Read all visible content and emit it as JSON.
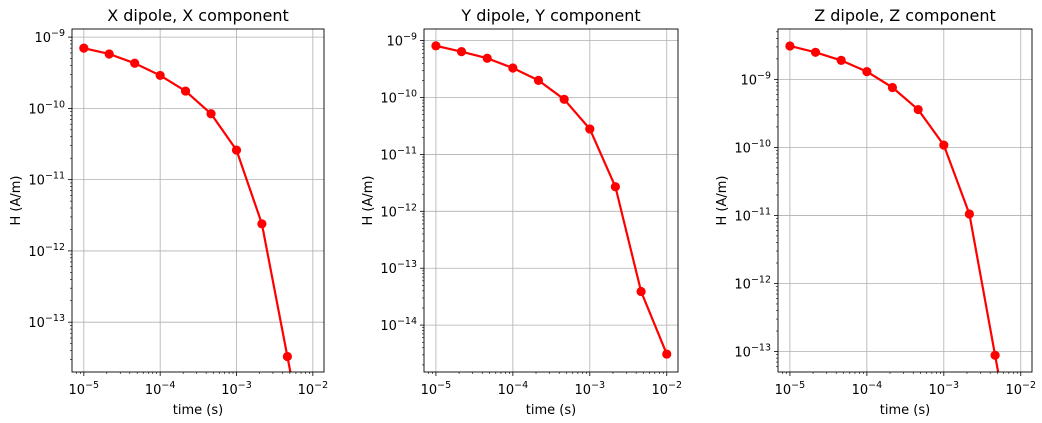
{
  "chart_data": [
    {
      "type": "line",
      "title": "X dipole, X component",
      "xlabel": "time (s)",
      "ylabel": "H (A/m)",
      "xscale": "log",
      "yscale": "log",
      "xlim": [
        7e-06,
        0.014
      ],
      "ylim": [
        2e-14,
        1.3e-09
      ],
      "grid": true,
      "xticks": [
        {
          "value": 1e-05,
          "base": "10",
          "exp": "−5"
        },
        {
          "value": 0.0001,
          "base": "10",
          "exp": "−4"
        },
        {
          "value": 0.001,
          "base": "10",
          "exp": "−3"
        },
        {
          "value": 0.01,
          "base": "10",
          "exp": "−2"
        }
      ],
      "yticks": [
        {
          "value": 1e-09,
          "base": "10",
          "exp": "−9"
        },
        {
          "value": 1e-10,
          "base": "10",
          "exp": "−10"
        },
        {
          "value": 1e-11,
          "base": "10",
          "exp": "−11"
        },
        {
          "value": 1e-12,
          "base": "10",
          "exp": "−12"
        },
        {
          "value": 1e-13,
          "base": "10",
          "exp": "−13"
        }
      ],
      "series": [
        {
          "color": "#ff0000",
          "marker": "circle",
          "x": [
            1e-05,
            2.15e-05,
            4.64e-05,
            0.0001,
            0.000215,
            0.000464,
            0.001,
            0.00215,
            0.00464
          ],
          "y": [
            7e-10,
            5.8e-10,
            4.3e-10,
            2.9e-10,
            1.75e-10,
            8.4e-11,
            2.6e-11,
            2.4e-12,
            3.3e-14
          ],
          "continues_below": true
        }
      ]
    },
    {
      "type": "line",
      "title": "Y dipole, Y component",
      "xlabel": "time (s)",
      "ylabel": "H (A/m)",
      "xscale": "log",
      "yscale": "log",
      "xlim": [
        7e-06,
        0.014
      ],
      "ylim": [
        1.5e-15,
        1.6e-09
      ],
      "grid": true,
      "xticks": [
        {
          "value": 1e-05,
          "base": "10",
          "exp": "−5"
        },
        {
          "value": 0.0001,
          "base": "10",
          "exp": "−4"
        },
        {
          "value": 0.001,
          "base": "10",
          "exp": "−3"
        },
        {
          "value": 0.01,
          "base": "10",
          "exp": "−2"
        }
      ],
      "yticks": [
        {
          "value": 1e-09,
          "base": "10",
          "exp": "−9"
        },
        {
          "value": 1e-10,
          "base": "10",
          "exp": "−10"
        },
        {
          "value": 1e-11,
          "base": "10",
          "exp": "−11"
        },
        {
          "value": 1e-12,
          "base": "10",
          "exp": "−12"
        },
        {
          "value": 1e-13,
          "base": "10",
          "exp": "−13"
        },
        {
          "value": 1e-14,
          "base": "10",
          "exp": "−14"
        }
      ],
      "series": [
        {
          "color": "#ff0000",
          "marker": "circle",
          "x": [
            1e-05,
            2.15e-05,
            4.64e-05,
            0.0001,
            0.000215,
            0.000464,
            0.001,
            0.00215,
            0.00464,
            0.01
          ],
          "y": [
            8.1e-10,
            6.4e-10,
            4.9e-10,
            3.3e-10,
            2e-10,
            9.3e-11,
            2.8e-11,
            2.7e-12,
            3.9e-14,
            3.1e-15
          ],
          "continues_below": false
        }
      ]
    },
    {
      "type": "line",
      "title": "Z dipole, Z component",
      "xlabel": "time (s)",
      "ylabel": "H (A/m)",
      "xscale": "log",
      "yscale": "log",
      "xlim": [
        7e-06,
        0.014
      ],
      "ylim": [
        5e-14,
        5.5e-09
      ],
      "grid": true,
      "xticks": [
        {
          "value": 1e-05,
          "base": "10",
          "exp": "−5"
        },
        {
          "value": 0.0001,
          "base": "10",
          "exp": "−4"
        },
        {
          "value": 0.001,
          "base": "10",
          "exp": "−3"
        },
        {
          "value": 0.01,
          "base": "10",
          "exp": "−2"
        }
      ],
      "yticks": [
        {
          "value": 1e-09,
          "base": "10",
          "exp": "−9"
        },
        {
          "value": 1e-10,
          "base": "10",
          "exp": "−10"
        },
        {
          "value": 1e-11,
          "base": "10",
          "exp": "−11"
        },
        {
          "value": 1e-12,
          "base": "10",
          "exp": "−12"
        },
        {
          "value": 1e-13,
          "base": "10",
          "exp": "−13"
        }
      ],
      "series": [
        {
          "color": "#ff0000",
          "marker": "circle",
          "x": [
            1e-05,
            2.15e-05,
            4.64e-05,
            0.0001,
            0.000215,
            0.000464,
            0.001,
            0.00215,
            0.00464
          ],
          "y": [
            3.1e-09,
            2.5e-09,
            1.9e-09,
            1.3e-09,
            7.6e-10,
            3.6e-10,
            1.08e-10,
            1.05e-11,
            8.8e-14
          ],
          "continues_below": true
        }
      ]
    }
  ]
}
